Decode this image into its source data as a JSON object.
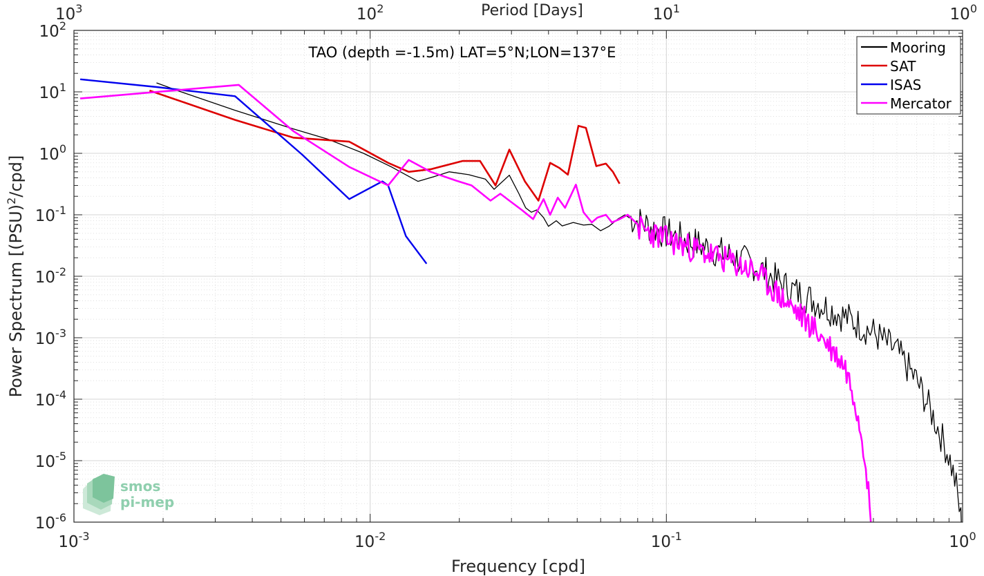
{
  "chart_data": {
    "type": "line",
    "title": "TAO (depth =-1.5m) LAT=5°N;LON=137°E",
    "xlabel": "Frequency [cpd]",
    "ylabel": "Power Spectrum [(PSU)",
    "ylabel_sup": "2",
    "ylabel_tail": "/cpd]",
    "top_xlabel": "Period [Days]",
    "xscale": "log",
    "yscale": "log",
    "xlim": [
      0.001,
      1
    ],
    "ylim": [
      1e-06,
      100
    ],
    "grid": true,
    "legend_position": "top-right",
    "x_ticks": [
      {
        "value": 0.001,
        "base": "10",
        "exp": "-3"
      },
      {
        "value": 0.01,
        "base": "10",
        "exp": "-2"
      },
      {
        "value": 0.1,
        "base": "10",
        "exp": "-1"
      },
      {
        "value": 1,
        "base": "10",
        "exp": "0"
      }
    ],
    "y_ticks": [
      {
        "value": 1e-06,
        "base": "10",
        "exp": "-6"
      },
      {
        "value": 1e-05,
        "base": "10",
        "exp": "-5"
      },
      {
        "value": 0.0001,
        "base": "10",
        "exp": "-4"
      },
      {
        "value": 0.001,
        "base": "10",
        "exp": "-3"
      },
      {
        "value": 0.01,
        "base": "10",
        "exp": "-2"
      },
      {
        "value": 0.1,
        "base": "10",
        "exp": "-1"
      },
      {
        "value": 1,
        "base": "10",
        "exp": "0"
      },
      {
        "value": 10,
        "base": "10",
        "exp": "1"
      },
      {
        "value": 100,
        "base": "10",
        "exp": "2"
      }
    ],
    "top_ticks": [
      {
        "freq": 0.001,
        "base": "10",
        "exp": "3"
      },
      {
        "freq": 0.01,
        "base": "10",
        "exp": "2"
      },
      {
        "freq": 0.1,
        "base": "10",
        "exp": "1"
      },
      {
        "freq": 1,
        "base": "10",
        "exp": "0"
      }
    ],
    "series": [
      {
        "name": "Mooring",
        "color": "#000000",
        "width": 1.3,
        "x": [
          0.0019,
          0.0023,
          0.0035,
          0.0055,
          0.0072,
          0.0095,
          0.0118,
          0.0145,
          0.0165,
          0.0185,
          0.0215,
          0.0245,
          0.0262,
          0.0295,
          0.0318,
          0.0335,
          0.035,
          0.0365,
          0.0385,
          0.04,
          0.0425,
          0.0445,
          0.0485,
          0.0525,
          0.056,
          0.06,
          0.064,
          0.0685,
          0.0725
        ],
        "y": [
          14,
          10,
          5,
          2.5,
          1.7,
          1.0,
          0.6,
          0.35,
          0.42,
          0.5,
          0.45,
          0.38,
          0.26,
          0.44,
          0.22,
          0.13,
          0.11,
          0.12,
          0.09,
          0.065,
          0.08,
          0.066,
          0.075,
          0.068,
          0.07,
          0.055,
          0.065,
          0.085,
          0.1
        ],
        "noise": {
          "from": 0.075,
          "to": 0.99,
          "step": 1.012,
          "seed": 7,
          "amp": 0.55,
          "ctrl": [
            [
              0.075,
              0.09
            ],
            [
              0.1,
              0.05
            ],
            [
              0.15,
              0.025
            ],
            [
              0.2,
              0.015
            ],
            [
              0.25,
              0.007
            ],
            [
              0.3,
              0.0045
            ],
            [
              0.4,
              0.0022
            ],
            [
              0.5,
              0.0012
            ],
            [
              0.6,
              0.0006
            ],
            [
              0.7,
              0.0002
            ],
            [
              0.8,
              5e-05
            ],
            [
              0.9,
              1.2e-05
            ],
            [
              0.95,
              4e-06
            ],
            [
              0.99,
              1e-06
            ]
          ]
        }
      },
      {
        "name": "SAT",
        "color": "#dd0000",
        "width": 2.6,
        "x": [
          0.0018,
          0.0035,
          0.0055,
          0.0085,
          0.0115,
          0.0135,
          0.016,
          0.0205,
          0.0235,
          0.0265,
          0.0295,
          0.0333,
          0.037,
          0.0405,
          0.0435,
          0.0465,
          0.0505,
          0.0535,
          0.058,
          0.0625,
          0.066,
          0.0695
        ],
        "y": [
          10.5,
          3.5,
          1.8,
          1.55,
          0.7,
          0.5,
          0.55,
          0.75,
          0.75,
          0.3,
          1.15,
          0.35,
          0.17,
          0.7,
          0.58,
          0.45,
          2.8,
          2.6,
          0.62,
          0.68,
          0.5,
          0.32
        ]
      },
      {
        "name": "ISAS",
        "color": "#0000ee",
        "width": 2.4,
        "x": [
          0.00105,
          0.0019,
          0.0035,
          0.0059,
          0.0085,
          0.011,
          0.0115,
          0.0132,
          0.0155
        ],
        "y": [
          16,
          12,
          8.5,
          0.95,
          0.18,
          0.35,
          0.3,
          0.045,
          0.016
        ]
      },
      {
        "name": "Mercator",
        "color": "#ff00ff",
        "width": 2.6,
        "x": [
          0.00105,
          0.0036,
          0.0055,
          0.0085,
          0.0115,
          0.0135,
          0.016,
          0.0195,
          0.022,
          0.0255,
          0.0275,
          0.0295,
          0.0325,
          0.0355,
          0.0385,
          0.0405,
          0.043,
          0.0455,
          0.0495,
          0.0525,
          0.056,
          0.0585,
          0.0625,
          0.0655,
          0.0695,
          0.074,
          0.08
        ],
        "y": [
          7.8,
          13,
          2.3,
          0.6,
          0.3,
          0.78,
          0.5,
          0.36,
          0.3,
          0.17,
          0.22,
          0.17,
          0.12,
          0.085,
          0.18,
          0.1,
          0.19,
          0.13,
          0.31,
          0.11,
          0.075,
          0.09,
          0.1,
          0.075,
          0.085,
          0.1,
          0.07
        ],
        "noise": {
          "from": 0.081,
          "to": 0.49,
          "step": 1.01,
          "seed": 23,
          "amp": 0.45,
          "ctrl": [
            [
              0.081,
              0.06
            ],
            [
              0.1,
              0.04
            ],
            [
              0.15,
              0.02
            ],
            [
              0.2,
              0.012
            ],
            [
              0.25,
              0.004
            ],
            [
              0.3,
              0.0018
            ],
            [
              0.35,
              0.0008
            ],
            [
              0.4,
              0.00035
            ],
            [
              0.43,
              0.00012
            ],
            [
              0.45,
              4e-05
            ],
            [
              0.47,
              1.2e-05
            ],
            [
              0.49,
              1e-06
            ]
          ]
        }
      }
    ],
    "legend": [
      "Mooring",
      "SAT",
      "ISAS",
      "Mercator"
    ],
    "watermark": {
      "line1": "smos",
      "line2": "pi-mep"
    }
  }
}
